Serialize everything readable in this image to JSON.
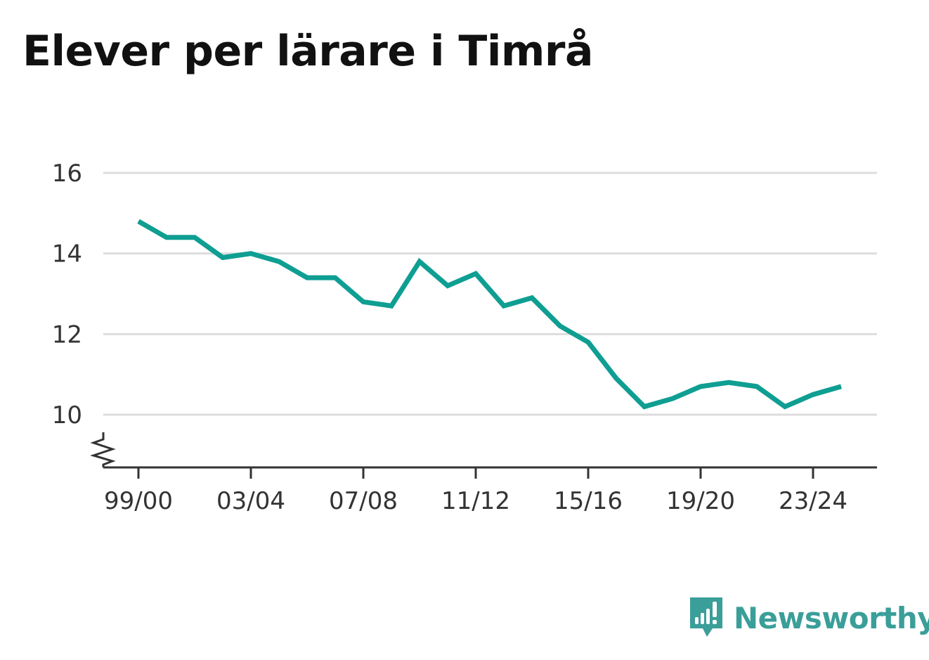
{
  "title": "Elever per lärare i Timrå",
  "brand": {
    "name": "Newsworthy",
    "color": "#3a9e99",
    "icon": "newsworthy-logo-icon"
  },
  "colors": {
    "line": "#0f9e92",
    "grid": "#dddddd",
    "axis": "#333333"
  },
  "chart_data": {
    "type": "line",
    "title": "Elever per lärare i Timrå",
    "xlabel": "",
    "ylabel": "",
    "ylim": [
      8.7,
      16
    ],
    "y_axis_break": true,
    "yticks": [
      10,
      12,
      14,
      16
    ],
    "grid": true,
    "x": [
      "99/00",
      "00/01",
      "01/02",
      "02/03",
      "03/04",
      "04/05",
      "05/06",
      "06/07",
      "07/08",
      "08/09",
      "09/10",
      "10/11",
      "11/12",
      "12/13",
      "13/14",
      "14/15",
      "15/16",
      "16/17",
      "17/18",
      "18/19",
      "19/20",
      "20/21",
      "21/22",
      "22/23",
      "23/24",
      "24/25"
    ],
    "xticks": [
      "99/00",
      "03/04",
      "07/08",
      "11/12",
      "15/16",
      "19/20",
      "23/24"
    ],
    "series": [
      {
        "values": [
          14.8,
          14.4,
          14.4,
          13.9,
          14.0,
          13.8,
          13.4,
          13.4,
          12.8,
          12.7,
          13.8,
          13.2,
          13.5,
          12.7,
          12.9,
          12.2,
          11.8,
          10.9,
          10.2,
          10.4,
          10.7,
          10.8,
          10.7,
          10.2,
          10.5,
          10.7
        ]
      }
    ]
  }
}
